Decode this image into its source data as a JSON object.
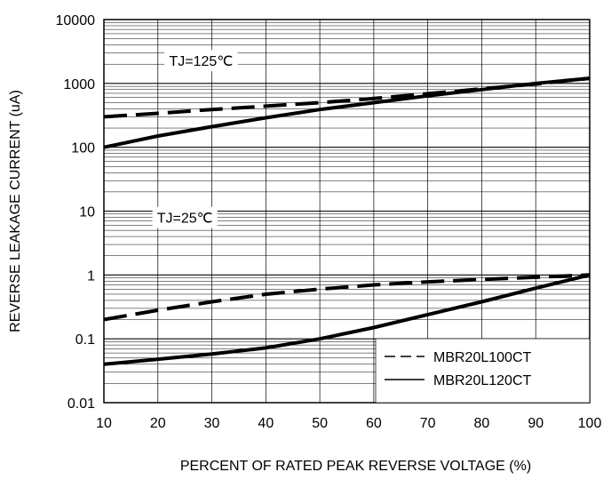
{
  "chart_data": {
    "type": "line",
    "title": "",
    "xlabel": "PERCENT OF RATED PEAK REVERSE VOLTAGE (%)",
    "ylabel": "REVERSE LEAKAGE CURRENT (uA)",
    "xlim": [
      10,
      100
    ],
    "ylim": [
      0.01,
      10000
    ],
    "y_scale": "log",
    "grid": true,
    "x_ticks": [
      "10",
      "20",
      "30",
      "40",
      "50",
      "60",
      "70",
      "80",
      "90",
      "100"
    ],
    "y_ticks": [
      "0.01",
      "0.1",
      "1",
      "10",
      "100",
      "1000",
      "10000"
    ],
    "legend": {
      "placement": "bottom-right",
      "entries": [
        {
          "label": "MBR20L100CT",
          "style": "dashed"
        },
        {
          "label": "MBR20L120CT",
          "style": "solid"
        }
      ]
    },
    "annotations": [
      {
        "text": "TJ=125℃",
        "x": 28,
        "y": 2000
      },
      {
        "text": "TJ=25℃",
        "x": 25,
        "y": 7
      }
    ],
    "series": [
      {
        "key": "MBR20L100CT",
        "temp": "125",
        "style": "dashed",
        "x": [
          10,
          20,
          30,
          40,
          50,
          60,
          70,
          80,
          90,
          100
        ],
        "y": [
          300,
          340,
          390,
          440,
          500,
          580,
          690,
          820,
          980,
          1200
        ]
      },
      {
        "key": "MBR20L120CT",
        "temp": "125",
        "style": "solid",
        "x": [
          10,
          20,
          30,
          40,
          50,
          60,
          70,
          80,
          90,
          100
        ],
        "y": [
          100,
          150,
          210,
          290,
          390,
          500,
          640,
          800,
          1000,
          1200
        ]
      },
      {
        "key": "MBR20L100CT",
        "temp": "25",
        "style": "dashed",
        "x": [
          10,
          20,
          30,
          40,
          50,
          60,
          70,
          80,
          90,
          100
        ],
        "y": [
          0.2,
          0.28,
          0.38,
          0.5,
          0.6,
          0.7,
          0.78,
          0.85,
          0.92,
          1.0
        ]
      },
      {
        "key": "MBR20L120CT",
        "temp": "25",
        "style": "solid",
        "x": [
          10,
          20,
          30,
          40,
          50,
          60,
          70,
          80,
          90,
          100
        ],
        "y": [
          0.04,
          0.048,
          0.058,
          0.072,
          0.1,
          0.15,
          0.24,
          0.38,
          0.62,
          1.0
        ]
      }
    ]
  }
}
